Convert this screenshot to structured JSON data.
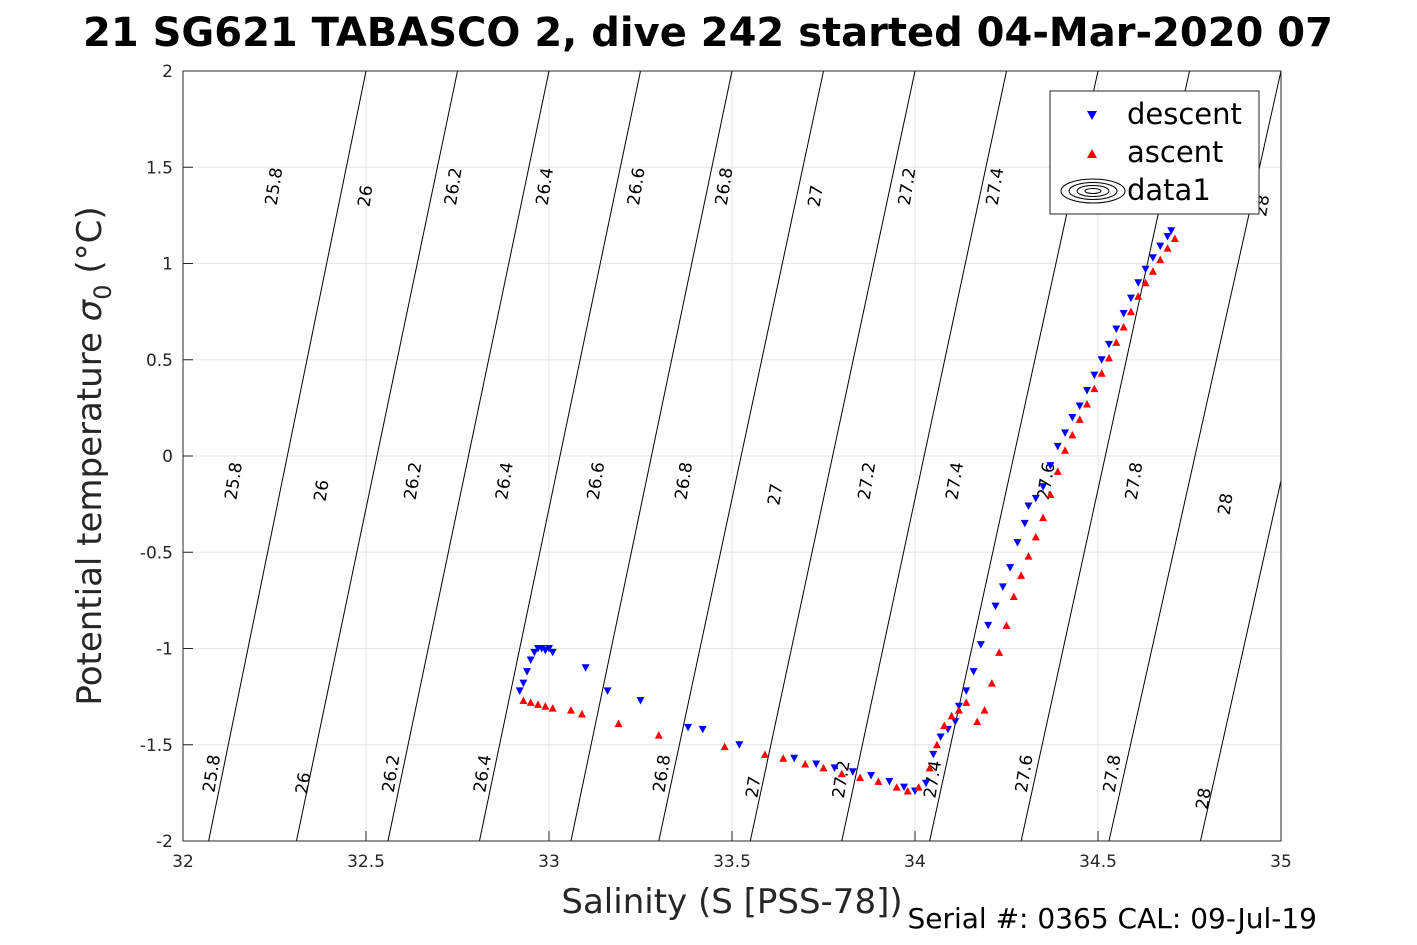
{
  "title": "21 SG621 TABASCO 2, dive 242 started 04-Mar-2020 07",
  "footer": "Serial #: 0365  CAL: 09-Jul-19",
  "chart_data": {
    "type": "scatter",
    "xlabel": "Salinity (S [PSS-78])",
    "ylabel_prefix": "Potential temperature ",
    "ylabel_sym": "σ",
    "ylabel_sub": "0",
    "ylabel_suffix": " (°C)",
    "xlim": [
      32,
      35
    ],
    "ylim": [
      -2,
      2
    ],
    "xticks": [
      32,
      32.5,
      33,
      33.5,
      34,
      34.5,
      35
    ],
    "xtick_labels": [
      "32",
      "32.5",
      "33",
      "33.5",
      "34",
      "34.5",
      "35"
    ],
    "yticks": [
      -2,
      -1.5,
      -1,
      -0.5,
      0,
      0.5,
      1,
      1.5,
      2
    ],
    "ytick_labels": [
      "-2",
      "-1.5",
      "-1",
      "-0.5",
      "0",
      "0.5",
      "1",
      "1.5",
      "2"
    ],
    "grid": true,
    "legend_position": "top-right",
    "legend": [
      "descent",
      "ascent",
      "data1"
    ],
    "colors": {
      "descent": "#0000ff",
      "ascent": "#ff0000",
      "contour": "#000000",
      "grid": "#e6e6e6"
    },
    "contours": [
      {
        "level": "25.8",
        "bottom_s": 32.07,
        "top_s": 32.5
      },
      {
        "level": "26",
        "bottom_s": 32.31,
        "top_s": 32.75
      },
      {
        "level": "26.2",
        "bottom_s": 32.56,
        "top_s": 33.0
      },
      {
        "level": "26.4",
        "bottom_s": 32.81,
        "top_s": 33.25
      },
      {
        "level": "26.6",
        "bottom_s": 33.06,
        "top_s": 33.5
      },
      {
        "level": "26.8",
        "bottom_s": 33.3,
        "top_s": 33.75
      },
      {
        "level": "27",
        "bottom_s": 33.55,
        "top_s": 34.0
      },
      {
        "level": "27.2",
        "bottom_s": 33.8,
        "top_s": 34.25
      },
      {
        "level": "27.4",
        "bottom_s": 34.04,
        "top_s": 34.5
      },
      {
        "level": "27.6",
        "bottom_s": 34.29,
        "top_s": 34.75
      },
      {
        "level": "27.8",
        "bottom_s": 34.53,
        "top_s": 35.0
      },
      {
        "level": "28",
        "bottom_s": 34.78,
        "top_s": 35.25
      }
    ],
    "contour_labels": [
      {
        "text": "25.8",
        "x": 32.25,
        "y": 1.4
      },
      {
        "text": "26",
        "x": 32.5,
        "y": 1.35
      },
      {
        "text": "26.2",
        "x": 32.74,
        "y": 1.4
      },
      {
        "text": "26.4",
        "x": 32.99,
        "y": 1.4
      },
      {
        "text": "26.6",
        "x": 33.24,
        "y": 1.4
      },
      {
        "text": "26.8",
        "x": 33.48,
        "y": 1.4
      },
      {
        "text": "27",
        "x": 33.73,
        "y": 1.35
      },
      {
        "text": "27.2",
        "x": 33.98,
        "y": 1.4
      },
      {
        "text": "27.4",
        "x": 34.22,
        "y": 1.4
      },
      {
        "text": "28",
        "x": 34.95,
        "y": 1.3
      },
      {
        "text": "25.8",
        "x": 32.14,
        "y": -0.13
      },
      {
        "text": "26",
        "x": 32.38,
        "y": -0.18
      },
      {
        "text": "26.2",
        "x": 32.63,
        "y": -0.13
      },
      {
        "text": "26.4",
        "x": 32.88,
        "y": -0.13
      },
      {
        "text": "26.6",
        "x": 33.13,
        "y": -0.13
      },
      {
        "text": "26.8",
        "x": 33.37,
        "y": -0.13
      },
      {
        "text": "27",
        "x": 33.62,
        "y": -0.2
      },
      {
        "text": "27.2",
        "x": 33.87,
        "y": -0.13
      },
      {
        "text": "27.4",
        "x": 34.11,
        "y": -0.13
      },
      {
        "text": "27.6",
        "x": 34.36,
        "y": -0.13
      },
      {
        "text": "27.8",
        "x": 34.6,
        "y": -0.13
      },
      {
        "text": "28",
        "x": 34.85,
        "y": -0.25
      },
      {
        "text": "25.8",
        "x": 32.08,
        "y": -1.65
      },
      {
        "text": "26",
        "x": 32.33,
        "y": -1.7
      },
      {
        "text": "26.2",
        "x": 32.57,
        "y": -1.65
      },
      {
        "text": "26.4",
        "x": 32.82,
        "y": -1.65
      },
      {
        "text": "26.8",
        "x": 33.31,
        "y": -1.65
      },
      {
        "text": "27",
        "x": 33.56,
        "y": -1.72
      },
      {
        "text": "27.2",
        "x": 33.8,
        "y": -1.68
      },
      {
        "text": "27.4",
        "x": 34.05,
        "y": -1.68
      },
      {
        "text": "27.6",
        "x": 34.3,
        "y": -1.65
      },
      {
        "text": "27.8",
        "x": 34.54,
        "y": -1.65
      },
      {
        "text": "28",
        "x": 34.79,
        "y": -1.78
      }
    ],
    "series": [
      {
        "name": "descent",
        "marker": "triangle-down",
        "points": [
          [
            32.92,
            -1.22
          ],
          [
            32.93,
            -1.18
          ],
          [
            32.94,
            -1.12
          ],
          [
            32.95,
            -1.06
          ],
          [
            32.96,
            -1.02
          ],
          [
            32.97,
            -1.0
          ],
          [
            32.98,
            -1.0
          ],
          [
            32.99,
            -1.01
          ],
          [
            33.0,
            -1.0
          ],
          [
            33.01,
            -1.02
          ],
          [
            33.1,
            -1.1
          ],
          [
            33.16,
            -1.22
          ],
          [
            33.25,
            -1.27
          ],
          [
            33.38,
            -1.41
          ],
          [
            33.42,
            -1.42
          ],
          [
            33.52,
            -1.5
          ],
          [
            33.67,
            -1.57
          ],
          [
            33.73,
            -1.6
          ],
          [
            33.78,
            -1.62
          ],
          [
            33.83,
            -1.64
          ],
          [
            33.88,
            -1.66
          ],
          [
            33.93,
            -1.69
          ],
          [
            33.97,
            -1.72
          ],
          [
            34.0,
            -1.74
          ],
          [
            34.03,
            -1.7
          ],
          [
            34.05,
            -1.55
          ],
          [
            34.07,
            -1.46
          ],
          [
            34.09,
            -1.42
          ],
          [
            34.11,
            -1.38
          ],
          [
            34.12,
            -1.3
          ],
          [
            34.14,
            -1.22
          ],
          [
            34.16,
            -1.12
          ],
          [
            34.18,
            -0.98
          ],
          [
            34.2,
            -0.88
          ],
          [
            34.22,
            -0.78
          ],
          [
            34.24,
            -0.68
          ],
          [
            34.26,
            -0.58
          ],
          [
            34.28,
            -0.45
          ],
          [
            34.3,
            -0.35
          ],
          [
            34.31,
            -0.26
          ],
          [
            34.33,
            -0.22
          ],
          [
            34.35,
            -0.16
          ],
          [
            34.37,
            -0.05
          ],
          [
            34.39,
            0.05
          ],
          [
            34.41,
            0.12
          ],
          [
            34.43,
            0.2
          ],
          [
            34.45,
            0.26
          ],
          [
            34.47,
            0.34
          ],
          [
            34.49,
            0.42
          ],
          [
            34.51,
            0.5
          ],
          [
            34.53,
            0.58
          ],
          [
            34.55,
            0.66
          ],
          [
            34.57,
            0.74
          ],
          [
            34.59,
            0.82
          ],
          [
            34.61,
            0.9
          ],
          [
            34.63,
            0.97
          ],
          [
            34.65,
            1.03
          ],
          [
            34.67,
            1.09
          ],
          [
            34.69,
            1.14
          ],
          [
            34.7,
            1.17
          ]
        ]
      },
      {
        "name": "ascent",
        "marker": "triangle-up",
        "points": [
          [
            32.93,
            -1.27
          ],
          [
            32.95,
            -1.28
          ],
          [
            32.97,
            -1.29
          ],
          [
            32.99,
            -1.3
          ],
          [
            33.01,
            -1.31
          ],
          [
            33.06,
            -1.32
          ],
          [
            33.09,
            -1.34
          ],
          [
            33.19,
            -1.39
          ],
          [
            33.3,
            -1.45
          ],
          [
            33.48,
            -1.51
          ],
          [
            33.59,
            -1.55
          ],
          [
            33.64,
            -1.57
          ],
          [
            33.7,
            -1.6
          ],
          [
            33.75,
            -1.62
          ],
          [
            33.8,
            -1.65
          ],
          [
            33.85,
            -1.67
          ],
          [
            33.9,
            -1.69
          ],
          [
            33.95,
            -1.72
          ],
          [
            33.98,
            -1.74
          ],
          [
            34.01,
            -1.72
          ],
          [
            34.04,
            -1.62
          ],
          [
            34.06,
            -1.5
          ],
          [
            34.08,
            -1.4
          ],
          [
            34.1,
            -1.35
          ],
          [
            34.12,
            -1.32
          ],
          [
            34.14,
            -1.28
          ],
          [
            34.17,
            -1.38
          ],
          [
            34.19,
            -1.32
          ],
          [
            34.21,
            -1.18
          ],
          [
            34.23,
            -1.02
          ],
          [
            34.25,
            -0.88
          ],
          [
            34.27,
            -0.73
          ],
          [
            34.29,
            -0.62
          ],
          [
            34.31,
            -0.52
          ],
          [
            34.33,
            -0.42
          ],
          [
            34.35,
            -0.32
          ],
          [
            34.37,
            -0.2
          ],
          [
            34.39,
            -0.08
          ],
          [
            34.41,
            0.03
          ],
          [
            34.43,
            0.11
          ],
          [
            34.45,
            0.19
          ],
          [
            34.47,
            0.27
          ],
          [
            34.49,
            0.35
          ],
          [
            34.51,
            0.43
          ],
          [
            34.53,
            0.51
          ],
          [
            34.55,
            0.59
          ],
          [
            34.57,
            0.67
          ],
          [
            34.59,
            0.75
          ],
          [
            34.61,
            0.83
          ],
          [
            34.63,
            0.9
          ],
          [
            34.65,
            0.96
          ],
          [
            34.67,
            1.02
          ],
          [
            34.69,
            1.08
          ],
          [
            34.71,
            1.13
          ]
        ]
      }
    ]
  }
}
